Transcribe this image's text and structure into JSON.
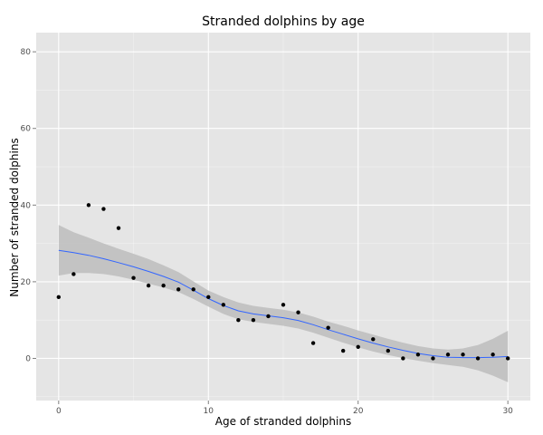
{
  "chart_data": {
    "type": "scatter",
    "title": "Stranded dolphins by age",
    "xlabel": "Age of stranded dolphins",
    "ylabel": "Number of stranded dolphins",
    "xlim": [
      -1.5,
      31.5
    ],
    "ylim": [
      -11,
      85
    ],
    "x_ticks": [
      0,
      10,
      20,
      30
    ],
    "y_ticks": [
      0,
      20,
      40,
      60,
      80
    ],
    "grid": true,
    "legend": "none",
    "colors": {
      "panel": "#e5e5e5",
      "grid": "#ffffff",
      "points": "#000000",
      "smooth_line": "#3366ff",
      "ribbon": "#bdbdbd",
      "tick_label": "#4d4d4d"
    },
    "points": {
      "x": [
        0,
        1,
        2,
        3,
        4,
        5,
        6,
        7,
        8,
        9,
        10,
        11,
        12,
        13,
        14,
        15,
        16,
        17,
        18,
        19,
        20,
        21,
        22,
        23,
        24,
        25,
        26,
        27,
        28,
        29,
        30
      ],
      "y": [
        16,
        22,
        40,
        39,
        34,
        21,
        19,
        19,
        18,
        18,
        16,
        14,
        10,
        10,
        11,
        14,
        12,
        4,
        8,
        2,
        3,
        5,
        2,
        0,
        1,
        0,
        1,
        1,
        0,
        1,
        0
      ]
    },
    "smooth": {
      "x": [
        0,
        1,
        2,
        3,
        4,
        5,
        6,
        7,
        8,
        9,
        10,
        11,
        12,
        13,
        14,
        15,
        16,
        17,
        18,
        19,
        20,
        21,
        22,
        23,
        24,
        25,
        26,
        27,
        28,
        29,
        30
      ],
      "y": [
        28.2,
        27.6,
        26.9,
        26.0,
        25.0,
        23.9,
        22.7,
        21.4,
        19.9,
        17.8,
        15.6,
        13.8,
        12.4,
        11.6,
        11.1,
        10.6,
        9.9,
        8.8,
        7.5,
        6.3,
        5.1,
        4.0,
        3.0,
        2.1,
        1.3,
        0.7,
        0.3,
        0.2,
        0.2,
        0.3,
        0.5
      ],
      "lower": [
        21.6,
        22.3,
        22.3,
        22.0,
        21.4,
        20.5,
        19.5,
        18.5,
        17.3,
        15.5,
        13.5,
        11.6,
        10.2,
        9.5,
        9.0,
        8.5,
        7.8,
        6.7,
        5.4,
        4.1,
        2.9,
        1.8,
        0.9,
        0.1,
        -0.6,
        -1.2,
        -1.7,
        -2.2,
        -3.1,
        -4.5,
        -6.2
      ],
      "upper": [
        34.8,
        32.9,
        31.5,
        30.0,
        28.6,
        27.3,
        25.9,
        24.3,
        22.5,
        20.1,
        17.7,
        16.0,
        14.6,
        13.7,
        13.2,
        12.7,
        12.0,
        10.9,
        9.6,
        8.5,
        7.3,
        6.2,
        5.1,
        4.1,
        3.2,
        2.6,
        2.3,
        2.6,
        3.5,
        5.1,
        7.2
      ]
    }
  }
}
